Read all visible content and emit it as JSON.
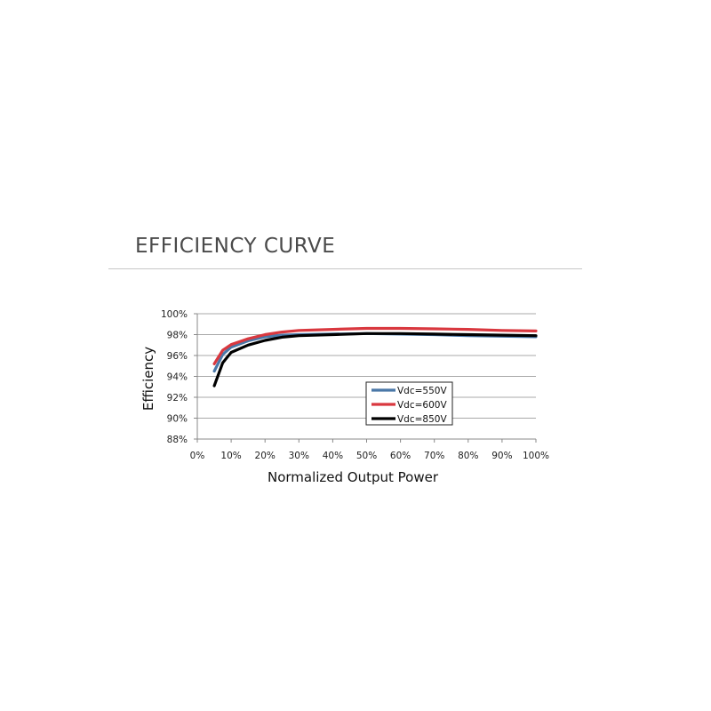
{
  "header": {
    "title": "EFFICIENCY CURVE"
  },
  "chart_data": {
    "type": "line",
    "title": "",
    "xlabel": "Normalized Output Power",
    "ylabel": "Efficiency",
    "xlim": [
      0,
      100
    ],
    "ylim": [
      88,
      100
    ],
    "x_ticks": [
      "0%",
      "10%",
      "20%",
      "30%",
      "40%",
      "50%",
      "60%",
      "70%",
      "80%",
      "90%",
      "100%"
    ],
    "y_ticks": [
      "100%",
      "98%",
      "96%",
      "94%",
      "92%",
      "90%",
      "88%"
    ],
    "grid": true,
    "legend_position": "inside-lower-center",
    "x": [
      5,
      7.5,
      10,
      15,
      20,
      25,
      30,
      40,
      50,
      60,
      70,
      80,
      90,
      100
    ],
    "series": [
      {
        "name": "Vdc=550V",
        "color": "#4a78a8",
        "values": [
          94.5,
          96.1,
          96.8,
          97.4,
          97.8,
          97.95,
          98.0,
          98.05,
          98.1,
          98.05,
          98.0,
          97.9,
          97.85,
          97.8
        ]
      },
      {
        "name": "Vdc=600V",
        "color": "#d9383f",
        "values": [
          95.2,
          96.5,
          97.05,
          97.6,
          98.0,
          98.25,
          98.4,
          98.5,
          98.6,
          98.6,
          98.55,
          98.5,
          98.4,
          98.35
        ]
      },
      {
        "name": "Vdc=850V",
        "color": "#000000",
        "values": [
          93.1,
          95.3,
          96.3,
          97.0,
          97.45,
          97.75,
          97.9,
          98.0,
          98.1,
          98.1,
          98.05,
          98.0,
          97.95,
          97.9
        ]
      }
    ]
  }
}
